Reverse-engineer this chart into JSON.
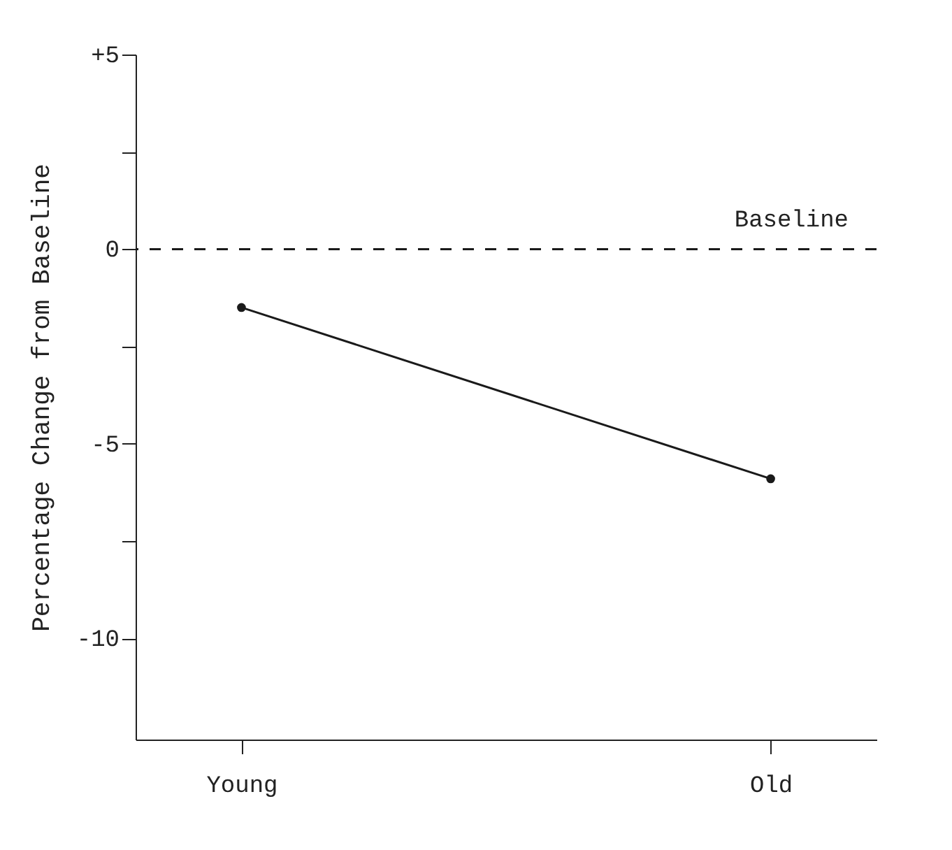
{
  "chart_data": {
    "type": "line",
    "ylabel": "Percentage Change from Baseline",
    "categories": [
      "Young",
      "Old"
    ],
    "series": [
      {
        "color": "#1a1a1a",
        "values": [
          -1.5,
          -5.9
        ]
      }
    ],
    "ylim": [
      -12.6,
      5
    ],
    "yticks": [
      {
        "value": 5,
        "label": "+5"
      },
      {
        "value": 2.5,
        "label": null
      },
      0,
      {
        "value": -2.5,
        "label": null
      },
      -5,
      {
        "value": -7.5,
        "label": null
      },
      -10
    ],
    "ref_lines": [
      {
        "axis": "y",
        "value": 0,
        "label": "Baseline",
        "line_style": "dashed",
        "color": "#1a1a1a"
      }
    ],
    "marker": "circle",
    "line_style": "solid",
    "grid": false
  }
}
